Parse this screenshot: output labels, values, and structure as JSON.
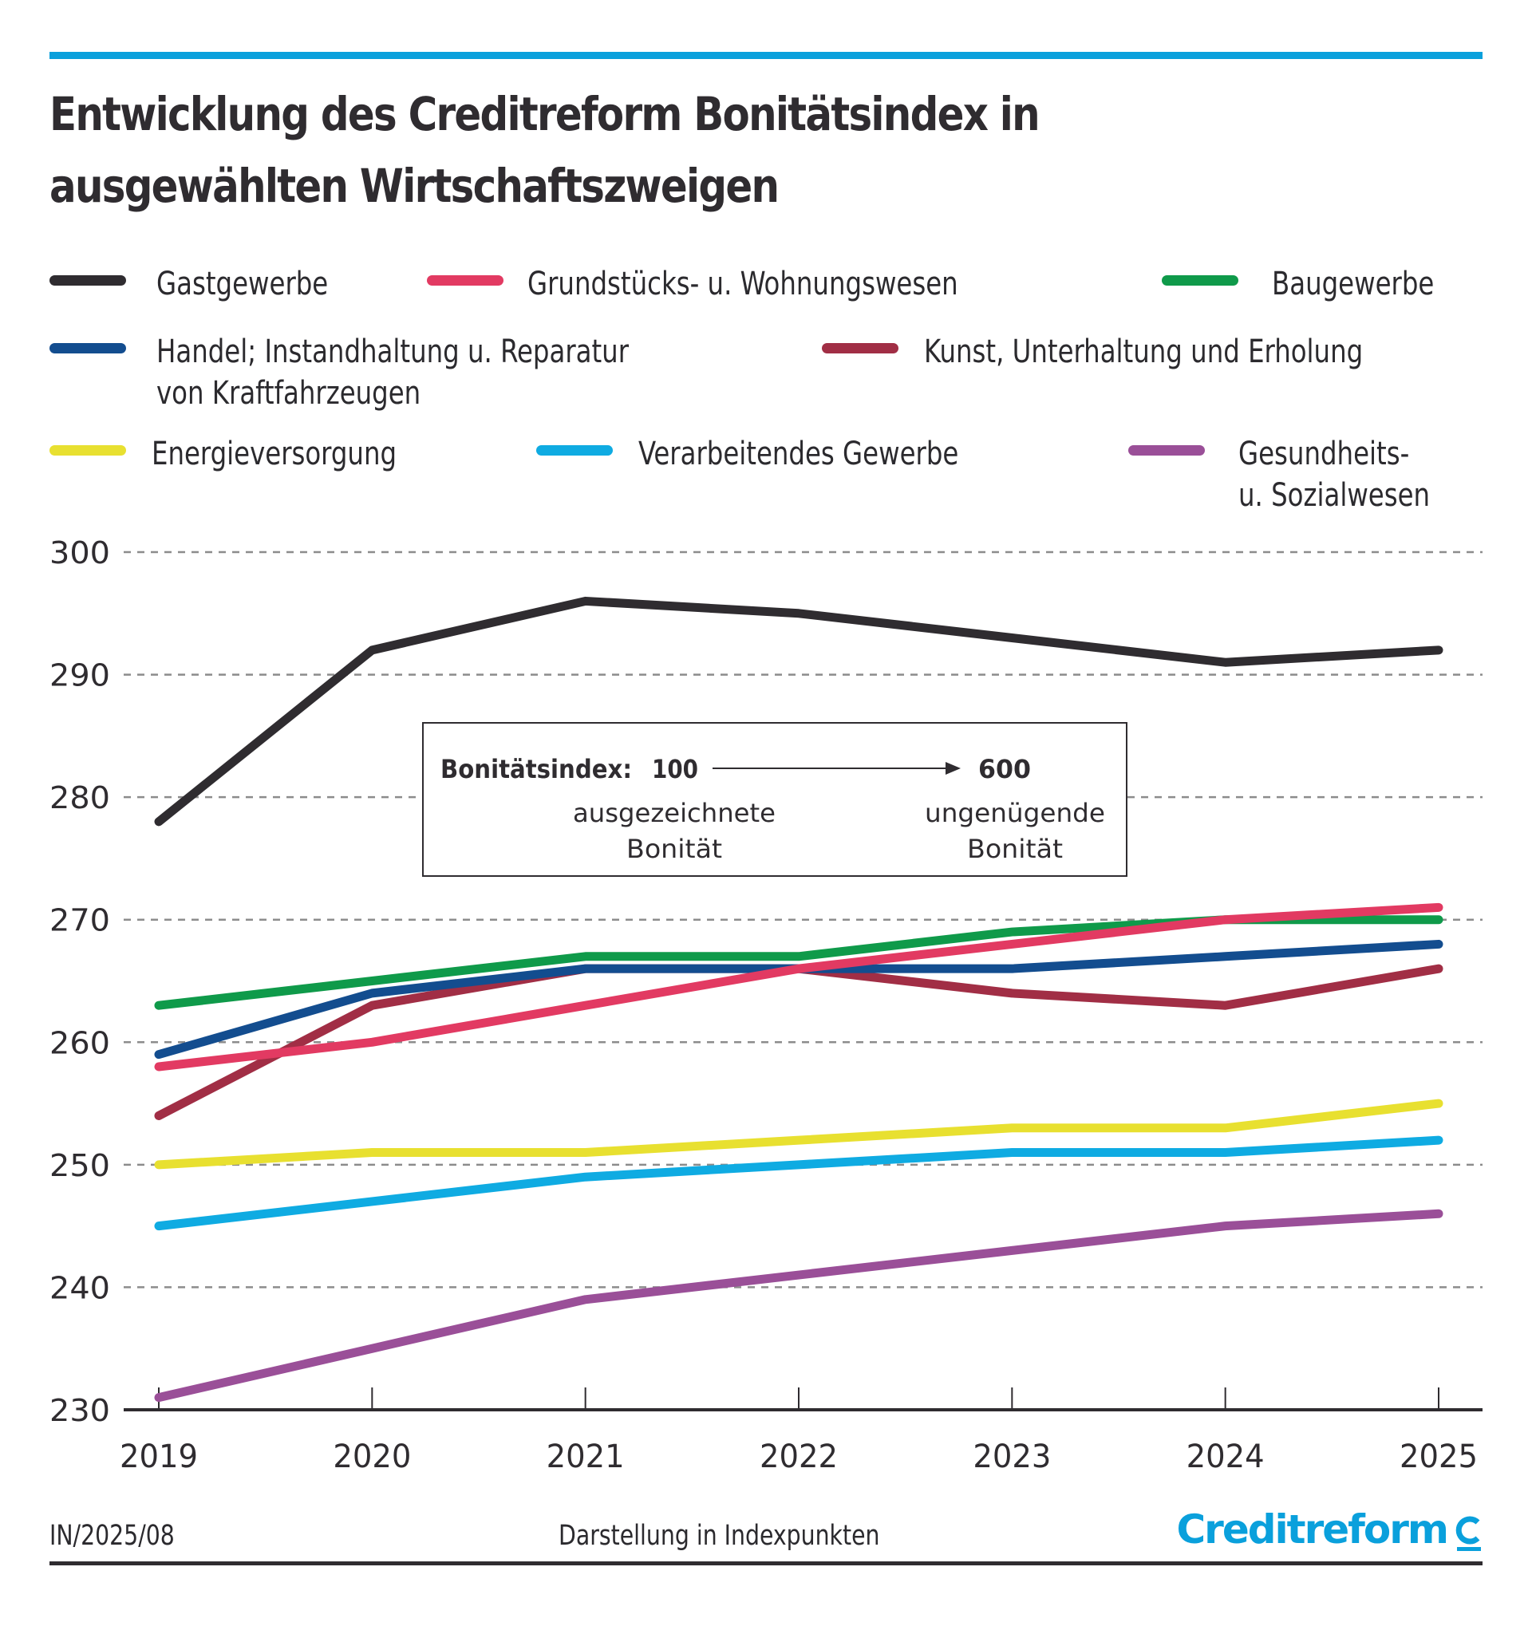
{
  "header": {
    "title_line1": "Entwicklung des Creditreform Bonitätsindex in",
    "title_line2": "ausgewählten Wirtschaftszweigen"
  },
  "legend": [
    {
      "label": "Gastgewerbe",
      "color": "#2f2c30"
    },
    {
      "label": "Grundstücks- u. Wohnungswesen",
      "color": "#e23a62"
    },
    {
      "label": "Baugewerbe",
      "color": "#0f9a4a"
    },
    {
      "label": "Handel; Instandhaltung u. Reparatur\nvon Kraftfahrzeugen",
      "color": "#134d8f"
    },
    {
      "label": "Kunst, Unterhaltung und Erholung",
      "color": "#a12e45"
    },
    {
      "label": "Energieversorgung",
      "color": "#e8e030"
    },
    {
      "label": "Verarbeitendes Gewerbe",
      "color": "#0fabe2"
    },
    {
      "label": "Gesundheits-\nu. Sozialwesen",
      "color": "#9a4f98"
    }
  ],
  "info_box": {
    "label": "Bonitätsindex:",
    "from_value": "100",
    "to_value": "600",
    "from_desc_line1": "ausgezeichnete",
    "from_desc_line2": "Bonität",
    "to_desc_line1": "ungenügende",
    "to_desc_line2": "Bonität"
  },
  "footer": {
    "code": "IN/2025/08",
    "note": "Darstellung in Indexpunkten",
    "brand": "Creditreform"
  },
  "colors": {
    "accent": "#0aa0dc",
    "grid": "#8c8c8c",
    "axis": "#2f2c30"
  },
  "chart_data": {
    "type": "line",
    "title": "Entwicklung des Creditreform Bonitätsindex in ausgewählten Wirtschaftszweigen",
    "xlabel": "",
    "ylabel": "Darstellung in Indexpunkten",
    "x": [
      "2019",
      "2020",
      "2021",
      "2022",
      "2023",
      "2024",
      "2025"
    ],
    "ylim": [
      230,
      300
    ],
    "yticks": [
      230,
      240,
      250,
      260,
      270,
      280,
      290,
      300
    ],
    "grid": true,
    "legend_position": "top",
    "series": [
      {
        "name": "Gastgewerbe",
        "color": "#2f2c30",
        "values": [
          278,
          292,
          296,
          295,
          293,
          291,
          292
        ]
      },
      {
        "name": "Grundstücks- u. Wohnungswesen",
        "color": "#e23a62",
        "values": [
          258,
          260,
          263,
          266,
          268,
          270,
          271
        ]
      },
      {
        "name": "Baugewerbe",
        "color": "#0f9a4a",
        "values": [
          263,
          265,
          267,
          267,
          269,
          270,
          270
        ]
      },
      {
        "name": "Handel; Instandhaltung u. Reparatur von Kraftfahrzeugen",
        "color": "#134d8f",
        "values": [
          259,
          264,
          266,
          266,
          266,
          267,
          268
        ]
      },
      {
        "name": "Kunst, Unterhaltung und Erholung",
        "color": "#a12e45",
        "values": [
          254,
          263,
          266,
          266,
          264,
          263,
          266
        ]
      },
      {
        "name": "Energieversorgung",
        "color": "#e8e030",
        "values": [
          250,
          251,
          251,
          252,
          253,
          253,
          255
        ]
      },
      {
        "name": "Verarbeitendes Gewerbe",
        "color": "#0fabe2",
        "values": [
          245,
          247,
          249,
          250,
          251,
          251,
          252
        ]
      },
      {
        "name": "Gesundheits- u. Sozialwesen",
        "color": "#9a4f98",
        "values": [
          231,
          235,
          239,
          241,
          243,
          245,
          246
        ]
      }
    ]
  }
}
